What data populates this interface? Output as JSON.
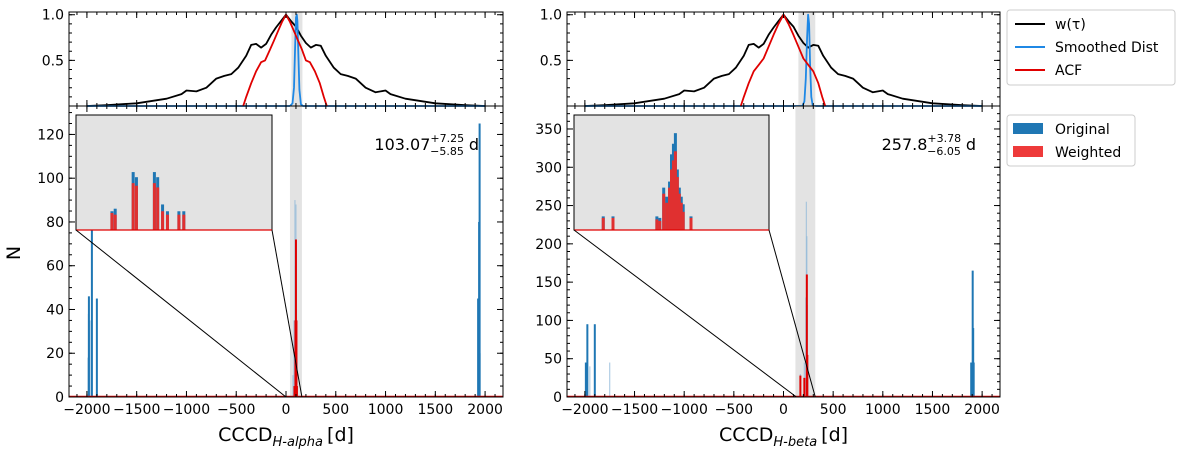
{
  "figure": {
    "shared_ylabel": "N"
  },
  "chart_data": [
    {
      "type": "line",
      "panel": "left-top",
      "xlim": [
        -2180,
        2180
      ],
      "ylim": [
        0,
        1.03
      ],
      "yticks": [
        0.5,
        1.0
      ],
      "ytick_labels": [
        "0.5",
        "1.0"
      ],
      "grid": false,
      "series": [
        {
          "name": "w(τ)",
          "color": "#000000",
          "points": [
            [
              -2000,
              0.0
            ],
            [
              -1800,
              0.01
            ],
            [
              -1500,
              0.03
            ],
            [
              -1200,
              0.08
            ],
            [
              -1050,
              0.13
            ],
            [
              -1000,
              0.17
            ],
            [
              -900,
              0.16
            ],
            [
              -800,
              0.2
            ],
            [
              -700,
              0.3
            ],
            [
              -620,
              0.33
            ],
            [
              -550,
              0.35
            ],
            [
              -480,
              0.42
            ],
            [
              -400,
              0.55
            ],
            [
              -350,
              0.67
            ],
            [
              -300,
              0.68
            ],
            [
              -250,
              0.64
            ],
            [
              -200,
              0.68
            ],
            [
              -150,
              0.78
            ],
            [
              -100,
              0.86
            ],
            [
              -50,
              0.93
            ],
            [
              0,
              1.0
            ],
            [
              50,
              0.93
            ],
            [
              100,
              0.87
            ],
            [
              150,
              0.77
            ],
            [
              200,
              0.69
            ],
            [
              250,
              0.64
            ],
            [
              300,
              0.67
            ],
            [
              350,
              0.66
            ],
            [
              400,
              0.55
            ],
            [
              480,
              0.42
            ],
            [
              550,
              0.35
            ],
            [
              620,
              0.33
            ],
            [
              700,
              0.3
            ],
            [
              800,
              0.2
            ],
            [
              900,
              0.15
            ],
            [
              1000,
              0.17
            ],
            [
              1050,
              0.13
            ],
            [
              1200,
              0.08
            ],
            [
              1500,
              0.03
            ],
            [
              1800,
              0.01
            ],
            [
              2000,
              0.0
            ]
          ]
        },
        {
          "name": "Smoothed Dist",
          "color": "#1f88e5",
          "points": [
            [
              -2000,
              0.0
            ],
            [
              40,
              0.0
            ],
            [
              65,
              0.03
            ],
            [
              80,
              0.2
            ],
            [
              90,
              0.6
            ],
            [
              100,
              0.97
            ],
            [
              108,
              1.0
            ],
            [
              115,
              0.93
            ],
            [
              125,
              0.55
            ],
            [
              135,
              0.18
            ],
            [
              150,
              0.02
            ],
            [
              170,
              0.0
            ],
            [
              2000,
              0.0
            ]
          ]
        },
        {
          "name": "ACF",
          "color": "#e00000",
          "points": [
            [
              -430,
              0.0
            ],
            [
              -400,
              0.1
            ],
            [
              -350,
              0.25
            ],
            [
              -300,
              0.38
            ],
            [
              -250,
              0.48
            ],
            [
              -210,
              0.5
            ],
            [
              -160,
              0.62
            ],
            [
              -120,
              0.72
            ],
            [
              -80,
              0.82
            ],
            [
              -40,
              0.92
            ],
            [
              0,
              1.0
            ],
            [
              40,
              0.92
            ],
            [
              80,
              0.82
            ],
            [
              120,
              0.72
            ],
            [
              160,
              0.62
            ],
            [
              200,
              0.5
            ],
            [
              240,
              0.48
            ],
            [
              290,
              0.38
            ],
            [
              340,
              0.25
            ],
            [
              380,
              0.1
            ],
            [
              410,
              0.0
            ]
          ]
        }
      ],
      "shaded_interval": [
        55,
        165
      ],
      "legend": "outside-right"
    },
    {
      "type": "bar",
      "panel": "left-bottom",
      "xlabel_main": "CCCD",
      "xlabel_sub": "H-alpha",
      "xlabel_unit": "[d]",
      "ylabel": "N",
      "xlim": [
        -2180,
        2180
      ],
      "ylim": [
        0,
        133
      ],
      "xticks": [
        -2000,
        -1500,
        -1000,
        -500,
        0,
        500,
        1000,
        1500,
        2000
      ],
      "xtick_labels": [
        "−2000",
        "−1500",
        "−1000",
        "−500",
        "0",
        "500",
        "1000",
        "1500",
        "2000"
      ],
      "yticks": [
        0,
        20,
        40,
        60,
        80,
        100,
        120
      ],
      "ytick_labels": [
        "0",
        "20",
        "40",
        "60",
        "80",
        "100",
        "120"
      ],
      "shaded_interval": [
        40,
        160
      ],
      "annotation": {
        "value": "103.07",
        "plus": "+7.25",
        "minus": "−5.85",
        "unit": "d"
      },
      "original_bars": [
        [
          -1990,
          18
        ],
        [
          -1985,
          38
        ],
        [
          -1980,
          46
        ],
        [
          -1975,
          30
        ],
        [
          -1968,
          35
        ],
        [
          -1950,
          80
        ],
        [
          -1900,
          45
        ],
        [
          70,
          10
        ],
        [
          80,
          35
        ],
        [
          90,
          90
        ],
        [
          95,
          60
        ],
        [
          100,
          88
        ],
        [
          105,
          40
        ],
        [
          110,
          20
        ],
        [
          1930,
          45
        ],
        [
          1940,
          80
        ],
        [
          1945,
          125
        ],
        [
          1950,
          20
        ]
      ],
      "weighted_bars": [
        [
          85,
          5
        ],
        [
          95,
          35
        ],
        [
          100,
          72
        ],
        [
          105,
          35
        ],
        [
          110,
          5
        ]
      ],
      "inset": {
        "xlim": [
          40,
          160
        ],
        "ylim": [
          0,
          135
        ],
        "original_bars": [
          [
            62,
            22
          ],
          [
            64,
            25
          ],
          [
            75,
            68
          ],
          [
            77,
            62
          ],
          [
            88,
            68
          ],
          [
            90,
            62
          ],
          [
            93,
            30
          ],
          [
            96,
            22
          ],
          [
            103,
            22
          ],
          [
            106,
            22
          ]
        ],
        "weighted_bars": [
          [
            62,
            20
          ],
          [
            64,
            18
          ],
          [
            75,
            55
          ],
          [
            77,
            52
          ],
          [
            88,
            55
          ],
          [
            90,
            50
          ],
          [
            93,
            22
          ],
          [
            96,
            18
          ],
          [
            103,
            18
          ],
          [
            106,
            18
          ]
        ],
        "connect_to": [
          0,
          160
        ]
      }
    },
    {
      "type": "line",
      "panel": "right-top",
      "xlim": [
        -2180,
        2180
      ],
      "ylim": [
        0,
        1.03
      ],
      "yticks": [
        0.5,
        1.0
      ],
      "ytick_labels": [
        "0.5",
        "1.0"
      ],
      "grid": false,
      "series": [
        {
          "name": "w(τ)",
          "color": "#000000",
          "points": [
            [
              -2000,
              0.0
            ],
            [
              -1800,
              0.01
            ],
            [
              -1500,
              0.03
            ],
            [
              -1200,
              0.08
            ],
            [
              -1050,
              0.13
            ],
            [
              -1000,
              0.17
            ],
            [
              -900,
              0.16
            ],
            [
              -800,
              0.2
            ],
            [
              -700,
              0.3
            ],
            [
              -620,
              0.33
            ],
            [
              -550,
              0.35
            ],
            [
              -480,
              0.42
            ],
            [
              -400,
              0.55
            ],
            [
              -350,
              0.67
            ],
            [
              -300,
              0.68
            ],
            [
              -250,
              0.64
            ],
            [
              -200,
              0.68
            ],
            [
              -150,
              0.78
            ],
            [
              -100,
              0.86
            ],
            [
              -50,
              0.93
            ],
            [
              0,
              1.0
            ],
            [
              50,
              0.93
            ],
            [
              100,
              0.87
            ],
            [
              150,
              0.77
            ],
            [
              200,
              0.69
            ],
            [
              250,
              0.64
            ],
            [
              300,
              0.67
            ],
            [
              350,
              0.66
            ],
            [
              400,
              0.55
            ],
            [
              480,
              0.42
            ],
            [
              550,
              0.35
            ],
            [
              620,
              0.33
            ],
            [
              700,
              0.3
            ],
            [
              800,
              0.2
            ],
            [
              900,
              0.15
            ],
            [
              1000,
              0.17
            ],
            [
              1050,
              0.13
            ],
            [
              1200,
              0.08
            ],
            [
              1500,
              0.03
            ],
            [
              1800,
              0.01
            ],
            [
              2000,
              0.0
            ]
          ]
        },
        {
          "name": "Smoothed Dist",
          "color": "#1f88e5",
          "points": [
            [
              -2000,
              0.0
            ],
            [
              190,
              0.0
            ],
            [
              210,
              0.05
            ],
            [
              225,
              0.3
            ],
            [
              238,
              0.75
            ],
            [
              248,
              1.0
            ],
            [
              258,
              0.9
            ],
            [
              268,
              0.45
            ],
            [
              280,
              0.1
            ],
            [
              295,
              0.0
            ],
            [
              2000,
              0.0
            ]
          ]
        },
        {
          "name": "ACF",
          "color": "#e00000",
          "points": [
            [
              -430,
              0.0
            ],
            [
              -400,
              0.1
            ],
            [
              -350,
              0.25
            ],
            [
              -300,
              0.38
            ],
            [
              -250,
              0.45
            ],
            [
              -200,
              0.52
            ],
            [
              -150,
              0.65
            ],
            [
              -100,
              0.78
            ],
            [
              -50,
              0.9
            ],
            [
              0,
              1.0
            ],
            [
              50,
              0.9
            ],
            [
              100,
              0.78
            ],
            [
              150,
              0.65
            ],
            [
              200,
              0.52
            ],
            [
              250,
              0.45
            ],
            [
              300,
              0.38
            ],
            [
              350,
              0.25
            ],
            [
              390,
              0.1
            ],
            [
              420,
              0.0
            ]
          ]
        }
      ],
      "shaded_interval": [
        150,
        320
      ],
      "legend": "outside-right"
    },
    {
      "type": "bar",
      "panel": "right-bottom",
      "xlabel_main": "CCCD",
      "xlabel_sub": "H-beta",
      "xlabel_unit": "[d]",
      "ylabel": "",
      "xlim": [
        -2180,
        2180
      ],
      "ylim": [
        0,
        380
      ],
      "xticks": [
        -2000,
        -1500,
        -1000,
        -500,
        0,
        500,
        1000,
        1500,
        2000
      ],
      "xtick_labels": [
        "−2000",
        "−1500",
        "−1000",
        "−500",
        "0",
        "500",
        "1000",
        "1500",
        "2000"
      ],
      "yticks": [
        0,
        50,
        100,
        150,
        200,
        250,
        300,
        350
      ],
      "ytick_labels": [
        "0",
        "50",
        "100",
        "150",
        "200",
        "250",
        "300",
        "350"
      ],
      "shaded_interval": [
        120,
        320
      ],
      "annotation": {
        "value": "257.8",
        "plus": "+3.78",
        "minus": "−6.05",
        "unit": "d"
      },
      "original_bars": [
        [
          -1990,
          45
        ],
        [
          -1975,
          95
        ],
        [
          -1950,
          40
        ],
        [
          -1900,
          95
        ],
        [
          -1750,
          45
        ],
        [
          170,
          30
        ],
        [
          210,
          45
        ],
        [
          225,
          130
        ],
        [
          230,
          255
        ],
        [
          235,
          210
        ],
        [
          240,
          120
        ],
        [
          245,
          45
        ],
        [
          1890,
          45
        ],
        [
          1905,
          165
        ],
        [
          1910,
          90
        ],
        [
          1915,
          45
        ]
      ],
      "weighted_bars": [
        [
          170,
          28
        ],
        [
          210,
          25
        ],
        [
          235,
          160
        ],
        [
          240,
          55
        ]
      ],
      "legend": "outside-right",
      "legend_entries": [
        {
          "label": "Original",
          "color": "#1f77b4"
        },
        {
          "label": "Weighted",
          "color": "#ee3a3a"
        }
      ],
      "inset": {
        "xlim": [
          120,
          320
        ],
        "ylim": [
          0,
          380
        ],
        "original_bars": [
          [
            150,
            45
          ],
          [
            160,
            45
          ],
          [
            205,
            45
          ],
          [
            208,
            40
          ],
          [
            212,
            140
          ],
          [
            215,
            110
          ],
          [
            218,
            160
          ],
          [
            220,
            250
          ],
          [
            222,
            285
          ],
          [
            224,
            320
          ],
          [
            226,
            200
          ],
          [
            228,
            140
          ],
          [
            230,
            110
          ],
          [
            232,
            85
          ],
          [
            240,
            45
          ]
        ],
        "weighted_bars": [
          [
            150,
            40
          ],
          [
            160,
            40
          ],
          [
            205,
            35
          ],
          [
            208,
            30
          ],
          [
            212,
            120
          ],
          [
            215,
            90
          ],
          [
            218,
            140
          ],
          [
            220,
            200
          ],
          [
            222,
            230
          ],
          [
            224,
            260
          ],
          [
            226,
            175
          ],
          [
            228,
            120
          ],
          [
            230,
            90
          ],
          [
            232,
            60
          ],
          [
            240,
            40
          ]
        ],
        "connect_to": [
          130,
          320
        ]
      }
    }
  ],
  "legend_top": {
    "entries": [
      {
        "label": "w(τ)",
        "color": "#000000"
      },
      {
        "label": "Smoothed Dist",
        "color": "#1f88e5"
      },
      {
        "label": "ACF",
        "color": "#e00000"
      }
    ]
  },
  "legend_bottom": {
    "entries": [
      {
        "label": "Original",
        "color": "#1f77b4"
      },
      {
        "label": "Weighted",
        "color": "#ee3a3a"
      }
    ]
  }
}
